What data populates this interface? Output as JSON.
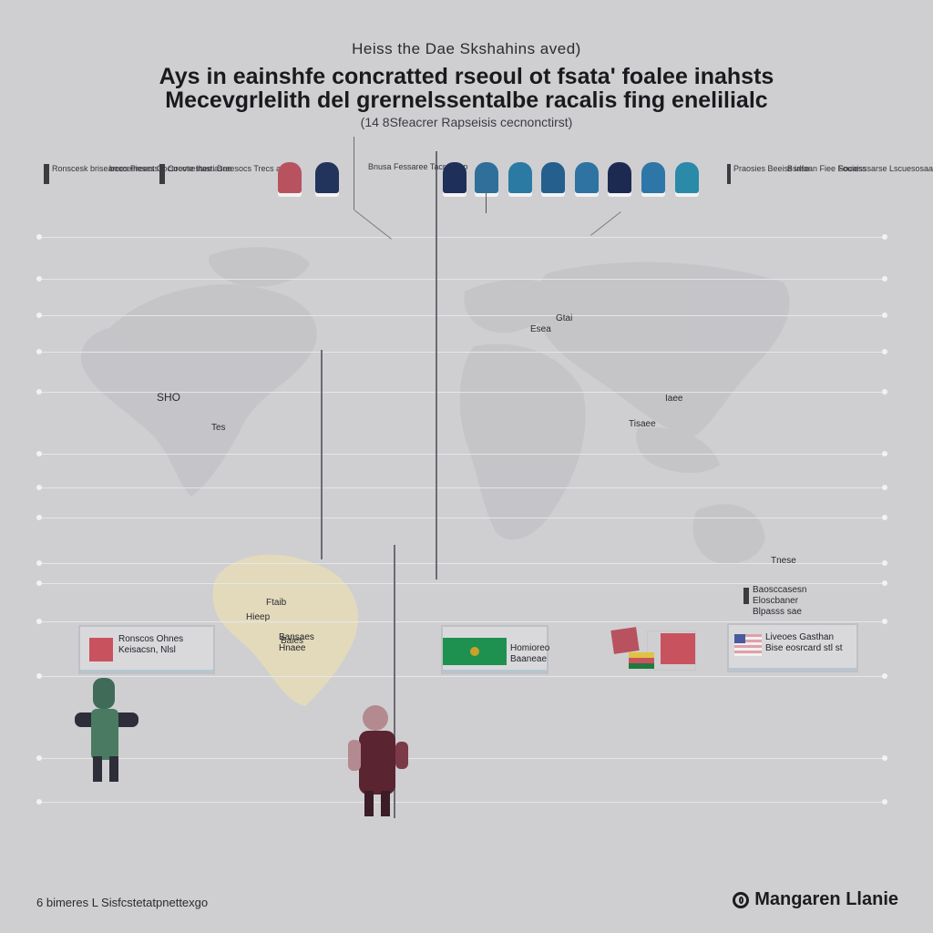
{
  "header": {
    "supertitle": "Heiss the Dae Skshahins aved)",
    "title_line1": "Ays in eainshfe concratted rseoul ot fsata' foalee inahsts",
    "title_line2": "Mecevgrlelith del grernelssentalbe racalis fing enelilialc",
    "subtitle": "(14 8Sfeacrer Rapseisis cecnonctirst)"
  },
  "legend_left": [
    {
      "text": "Ronscesk\nbrisearces\nPreeots"
    },
    {
      "text": "beccesieses\nCocsrcote\nIhee asee"
    },
    {
      "text": "Coevsestasti\nDreesocs\nTrecs aees"
    }
  ],
  "legend_mid": {
    "text": "Bnusa\nFessaree\nTacrst\nuep"
  },
  "legend_right": [
    {
      "text": "Praosies\nBeeiss iase"
    },
    {
      "text": "Bsrlfoan\nFiee\nFouiess"
    },
    {
      "text": "Socaisssarse\nLscuesosaas"
    }
  ],
  "swatches": [
    {
      "color": "#b9525f"
    },
    {
      "color": "#22335c"
    },
    {
      "color": "#1e2f5a"
    },
    {
      "color": "#2f6f9a"
    },
    {
      "color": "#2b7aa3"
    },
    {
      "color": "#245f8e"
    },
    {
      "color": "#2e73a2"
    },
    {
      "color": "#1c2a52"
    },
    {
      "color": "#2f76a8"
    },
    {
      "color": "#2a8aa8"
    }
  ],
  "map_labels": {
    "na_1": "SHO",
    "na_2": "Tes",
    "asia_1": "Gtai",
    "asia_2": "Esea",
    "asia_3": "Iaee",
    "asia_4": "Tisaee",
    "africa_1": "Ftaib",
    "africa_2": "Hieep",
    "africa_3": "Baies",
    "oceania": "Tnese"
  },
  "panels": {
    "left": {
      "text": "Ronscos Ohnes\nKeisacsn, Nlsl",
      "flag_color": "#c9525f"
    },
    "center_left": {
      "text": "Bansaes\nHnaee"
    },
    "center": {
      "text": "Homioreo\nBaaneae",
      "flag_color": "#1e9150",
      "emblem_color": "#c9a227"
    },
    "center_right": {
      "flag_color": "#c9525f"
    },
    "right": {
      "text": "Liveoes Gasthan\nBise eosrcard stl st",
      "flag_color": "#e0a0a8"
    }
  },
  "callout_right": {
    "text": "Baosccasesn\nEloscbaner\nBlpasss sae"
  },
  "footer": {
    "left": "6 bimeres  L Sisfcstetatpnettexgo",
    "brand": "Mangaren Llanie"
  },
  "colors": {
    "background": "#cfcfd1",
    "map": "#c2c2c5",
    "map_highlight": "#e6dcb8",
    "gridline": "#e6e6ea"
  }
}
